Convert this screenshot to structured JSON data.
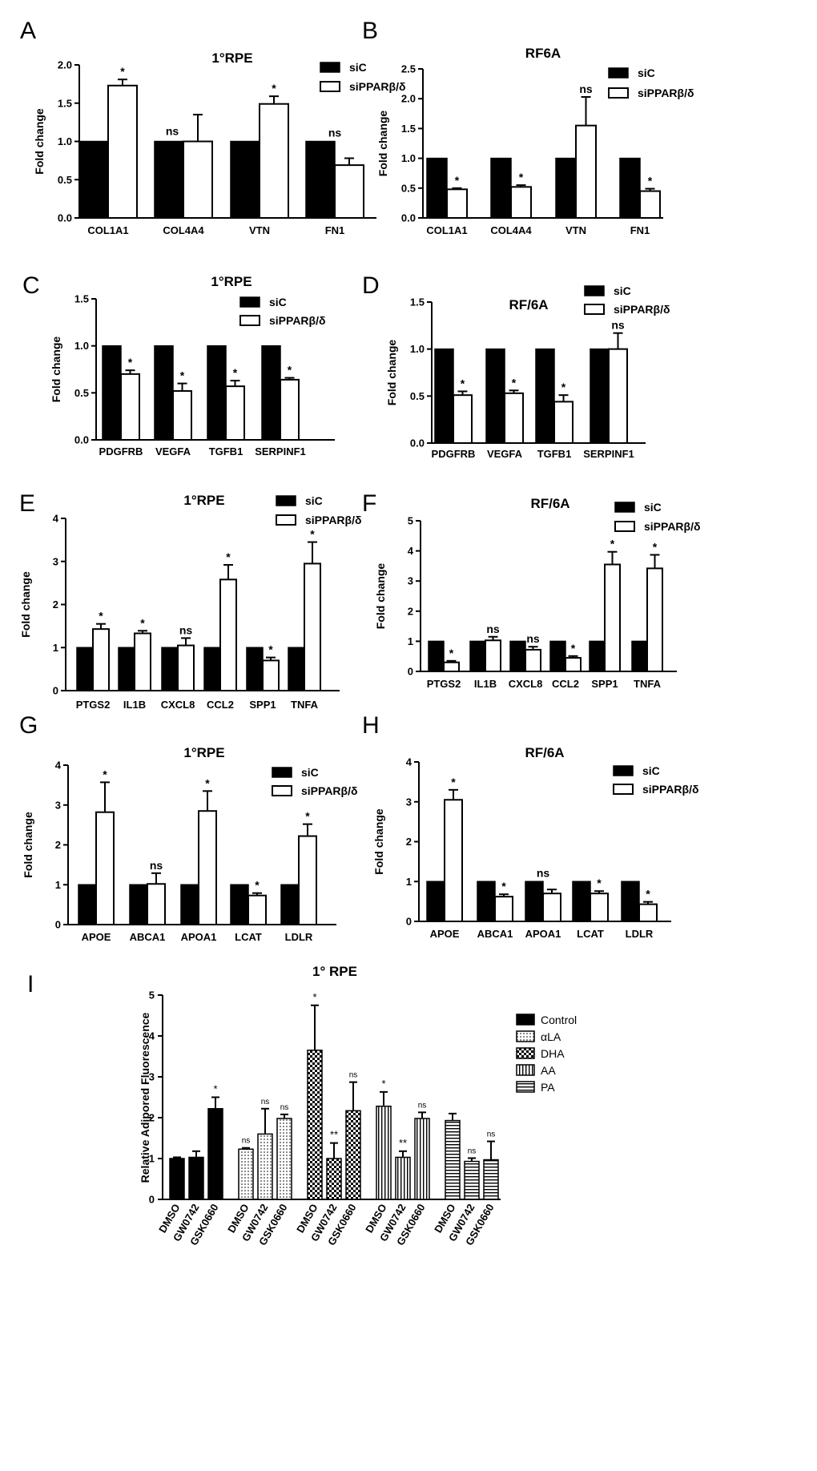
{
  "legend_labels": {
    "siC": "siC",
    "sip": "siPPARβ/δ"
  },
  "colors": {
    "black": "#000000",
    "white": "#ffffff"
  },
  "chart_data": [
    {
      "panel": "A",
      "type": "bar",
      "title": "1°RPE",
      "ylabel": "Fold change",
      "ylim": [
        0,
        2.0
      ],
      "yticks": [
        "0.0",
        "0.5",
        "1.0",
        "1.5",
        "2.0"
      ],
      "categories": [
        "COL1A1",
        "COL4A4",
        "VTN",
        "FN1"
      ],
      "series": [
        {
          "name": "siC",
          "values": [
            1,
            1,
            1,
            1
          ],
          "errors": [
            0,
            0,
            0,
            0
          ]
        },
        {
          "name": "siPPARβ/δ",
          "values": [
            1.73,
            1.0,
            1.49,
            0.69
          ],
          "errors": [
            0.08,
            0.35,
            0.1,
            0.09
          ]
        }
      ],
      "annotations": [
        "*",
        "ns",
        "*",
        "ns"
      ],
      "legend": "top-right"
    },
    {
      "panel": "B",
      "type": "bar",
      "title": "RF6A",
      "ylabel": "Fold change",
      "ylim": [
        0,
        2.5
      ],
      "yticks": [
        "0.0",
        "0.5",
        "1.0",
        "1.5",
        "2.0",
        "2.5"
      ],
      "categories": [
        "COL1A1",
        "COL4A4",
        "VTN",
        "FN1"
      ],
      "series": [
        {
          "name": "siC",
          "values": [
            1,
            1,
            1,
            1
          ],
          "errors": [
            0,
            0,
            0,
            0
          ]
        },
        {
          "name": "siPPARβ/δ",
          "values": [
            0.48,
            0.52,
            1.55,
            0.45
          ],
          "errors": [
            0.02,
            0.03,
            0.48,
            0.04
          ]
        }
      ],
      "annotations": [
        "*",
        "*",
        "ns",
        "*"
      ],
      "legend": "top-right"
    },
    {
      "panel": "C",
      "type": "bar",
      "title": "1°RPE",
      "ylabel": "Fold change",
      "ylim": [
        0,
        1.5
      ],
      "yticks": [
        "0.0",
        "0.5",
        "1.0",
        "1.5"
      ],
      "categories": [
        "PDGFRB",
        "VEGFA",
        "TGFB1",
        "SERPINF1"
      ],
      "series": [
        {
          "name": "siC",
          "values": [
            1,
            1,
            1,
            1
          ],
          "errors": [
            0,
            0,
            0,
            0
          ]
        },
        {
          "name": "siPPARβ/δ",
          "values": [
            0.7,
            0.52,
            0.57,
            0.64
          ],
          "errors": [
            0.04,
            0.08,
            0.06,
            0.02
          ]
        }
      ],
      "annotations": [
        "*",
        "*",
        "*",
        "*"
      ],
      "legend": "top-right"
    },
    {
      "panel": "D",
      "type": "bar",
      "title": "RF/6A",
      "ylabel": "Fold change",
      "ylim": [
        0,
        1.5
      ],
      "yticks": [
        "0.0",
        "0.5",
        "1.0",
        "1.5"
      ],
      "categories": [
        "PDGFRB",
        "VEGFA",
        "TGFB1",
        "SERPINF1"
      ],
      "series": [
        {
          "name": "siC",
          "values": [
            1,
            1,
            1,
            1
          ],
          "errors": [
            0,
            0,
            0,
            0
          ]
        },
        {
          "name": "siPPARβ/δ",
          "values": [
            0.51,
            0.53,
            0.44,
            1.0
          ],
          "errors": [
            0.04,
            0.03,
            0.07,
            0.17
          ]
        }
      ],
      "annotations": [
        "*",
        "*",
        "*",
        "ns"
      ],
      "legend": "top-right"
    },
    {
      "panel": "E",
      "type": "bar",
      "title": "1°RPE",
      "ylabel": "Fold change",
      "ylim": [
        0,
        4
      ],
      "yticks": [
        "0",
        "1",
        "2",
        "3",
        "4"
      ],
      "categories": [
        "PTGS2",
        "IL1B",
        "CXCL8",
        "CCL2",
        "SPP1",
        "TNFA"
      ],
      "series": [
        {
          "name": "siC",
          "values": [
            1,
            1,
            1,
            1,
            1,
            1
          ],
          "errors": [
            0,
            0,
            0,
            0,
            0,
            0
          ]
        },
        {
          "name": "siPPARβ/δ",
          "values": [
            1.43,
            1.33,
            1.05,
            2.58,
            0.7,
            2.95
          ],
          "errors": [
            0.12,
            0.06,
            0.17,
            0.34,
            0.07,
            0.5
          ]
        }
      ],
      "annotations": [
        "*",
        "*",
        "ns",
        "*",
        "*",
        "*"
      ],
      "legend": "top-right"
    },
    {
      "panel": "F",
      "type": "bar",
      "title": "RF/6A",
      "ylabel": "Fold change",
      "ylim": [
        0,
        5
      ],
      "yticks": [
        "0",
        "1",
        "2",
        "3",
        "4",
        "5"
      ],
      "categories": [
        "PTGS2",
        "IL1B",
        "CXCL8",
        "CCL2",
        "SPP1",
        "TNFA"
      ],
      "series": [
        {
          "name": "siC",
          "values": [
            1,
            1,
            1,
            1,
            1,
            1
          ],
          "errors": [
            0,
            0,
            0,
            0,
            0,
            0
          ]
        },
        {
          "name": "siPPARβ/δ",
          "values": [
            0.3,
            1.03,
            0.72,
            0.45,
            3.55,
            3.42
          ],
          "errors": [
            0.05,
            0.12,
            0.1,
            0.06,
            0.42,
            0.45
          ]
        }
      ],
      "annotations": [
        "*",
        "ns",
        "ns",
        "*",
        "*",
        "*"
      ],
      "legend": "top-right"
    },
    {
      "panel": "G",
      "type": "bar",
      "title": "1°RPE",
      "ylabel": "Fold change",
      "ylim": [
        0,
        4
      ],
      "yticks": [
        "0",
        "1",
        "2",
        "3",
        "4"
      ],
      "categories": [
        "APOE",
        "ABCA1",
        "APOA1",
        "LCAT",
        "LDLR"
      ],
      "series": [
        {
          "name": "siC",
          "values": [
            1,
            1,
            1,
            1,
            1
          ],
          "errors": [
            0,
            0,
            0,
            0,
            0
          ]
        },
        {
          "name": "siPPARβ/δ",
          "values": [
            2.82,
            1.02,
            2.85,
            0.73,
            2.22
          ],
          "errors": [
            0.75,
            0.27,
            0.5,
            0.06,
            0.3
          ]
        }
      ],
      "annotations": [
        "*",
        "ns",
        "*",
        "*",
        "*"
      ],
      "legend": "top-right"
    },
    {
      "panel": "H",
      "type": "bar",
      "title": "RF/6A",
      "ylabel": "Fold change",
      "ylim": [
        0,
        4
      ],
      "yticks": [
        "0",
        "1",
        "2",
        "3",
        "4"
      ],
      "categories": [
        "APOE",
        "ABCA1",
        "APOA1",
        "LCAT",
        "LDLR"
      ],
      "series": [
        {
          "name": "siC",
          "values": [
            1,
            1,
            1,
            1,
            1
          ],
          "errors": [
            0,
            0,
            0,
            0,
            0
          ]
        },
        {
          "name": "siPPARβ/δ",
          "values": [
            3.05,
            0.62,
            0.7,
            0.7,
            0.43
          ],
          "errors": [
            0.25,
            0.06,
            0.1,
            0.06,
            0.06
          ]
        }
      ],
      "annotations": [
        "*",
        "*",
        "ns",
        "*",
        "*"
      ],
      "legend": "top-right"
    },
    {
      "panel": "I",
      "type": "bar",
      "title": "1° RPE",
      "ylabel": "Relative Adipored Fluorescence",
      "ylim": [
        0,
        5
      ],
      "yticks": [
        "0",
        "1",
        "2",
        "3",
        "4",
        "5"
      ],
      "categories": [
        "DMSO",
        "GW0742",
        "GSK0660"
      ],
      "series": [
        {
          "name": "Control",
          "values": [
            1.0,
            1.03,
            2.22
          ],
          "errors": [
            0.03,
            0.15,
            0.28
          ],
          "annotations": [
            "",
            "",
            "*"
          ]
        },
        {
          "name": "αLA",
          "values": [
            1.23,
            1.6,
            1.98
          ],
          "errors": [
            0.03,
            0.62,
            0.1
          ],
          "annotations": [
            "ns",
            "ns",
            "ns"
          ]
        },
        {
          "name": "DHA",
          "values": [
            3.65,
            1.0,
            2.17
          ],
          "errors": [
            1.1,
            0.38,
            0.7
          ],
          "annotations": [
            "*",
            "**",
            "ns"
          ]
        },
        {
          "name": "AA",
          "values": [
            2.28,
            1.03,
            1.98
          ],
          "errors": [
            0.35,
            0.15,
            0.15
          ],
          "annotations": [
            "*",
            "**",
            "ns"
          ]
        },
        {
          "name": "PA",
          "values": [
            1.93,
            0.93,
            0.97
          ],
          "errors": [
            0.17,
            0.08,
            0.45
          ],
          "annotations": [
            "",
            "ns",
            "ns"
          ]
        }
      ],
      "legend": "right"
    }
  ]
}
